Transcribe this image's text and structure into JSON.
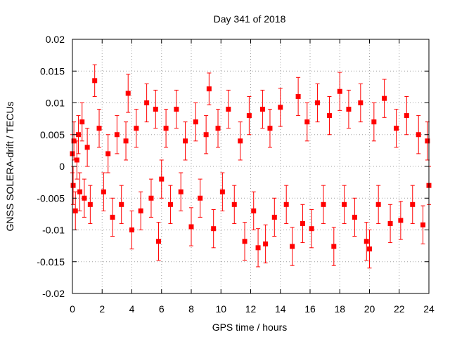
{
  "chart_data": {
    "type": "scatter",
    "title": "Day 341 of 2018",
    "xlabel": "GPS time / hours",
    "ylabel": "GNSS SOLERA-drift / TECUs",
    "xlim": [
      0,
      24
    ],
    "ylim": [
      -0.02,
      0.02
    ],
    "xticks": [
      0,
      2,
      4,
      6,
      8,
      10,
      12,
      14,
      16,
      18,
      20,
      22,
      24
    ],
    "xtick_labels": [
      "0",
      "2",
      "4",
      "6",
      "8",
      "10",
      "12",
      "14",
      "16",
      "18",
      "20",
      "22",
      "24"
    ],
    "yticks": [
      -0.02,
      -0.015,
      -0.01,
      -0.005,
      0,
      0.005,
      0.01,
      0.015,
      0.02
    ],
    "ytick_labels": [
      "-0.02",
      "-0.015",
      "-0.01",
      "-0.005",
      "0",
      "0.005",
      "0.01",
      "0.015",
      "0.02"
    ],
    "grid": true,
    "series_color": "#ff0000",
    "error_bars": true,
    "series": [
      {
        "x": [
          0.0,
          0.05,
          0.1,
          0.2,
          0.3,
          0.4,
          0.5,
          0.65,
          0.8,
          1.0,
          1.2,
          1.5,
          1.8,
          2.1,
          2.4,
          2.7,
          3.0,
          3.3,
          3.6,
          3.75,
          4.0,
          4.3,
          4.6,
          5.0,
          5.3,
          5.6,
          5.8,
          6.0,
          6.3,
          6.6,
          7.0,
          7.3,
          7.6,
          8.0,
          8.3,
          8.6,
          9.0,
          9.2,
          9.5,
          9.8,
          10.1,
          10.5,
          10.9,
          11.3,
          11.6,
          11.9,
          12.2,
          12.5,
          12.8,
          13.0,
          13.3,
          13.6,
          14.0,
          14.4,
          14.8,
          15.2,
          15.5,
          15.8,
          16.1,
          16.5,
          16.9,
          17.3,
          17.6,
          18.0,
          18.3,
          18.6,
          19.0,
          19.4,
          19.8,
          20.0,
          20.3,
          20.6,
          21.0,
          21.4,
          21.8,
          22.1,
          22.5,
          22.9,
          23.3,
          23.6,
          23.9,
          24.0
        ],
        "y": [
          0.002,
          -0.003,
          0.004,
          -0.007,
          0.001,
          0.005,
          -0.004,
          0.007,
          -0.005,
          0.003,
          -0.006,
          0.0135,
          0.006,
          -0.004,
          0.002,
          -0.008,
          0.005,
          -0.006,
          0.004,
          0.0115,
          -0.01,
          0.006,
          -0.007,
          0.01,
          -0.005,
          0.009,
          -0.0118,
          -0.002,
          0.006,
          -0.006,
          0.009,
          -0.004,
          0.004,
          -0.0095,
          0.007,
          -0.005,
          0.005,
          0.0122,
          -0.0098,
          0.006,
          -0.004,
          0.009,
          -0.006,
          0.004,
          -0.0118,
          0.008,
          -0.007,
          -0.0128,
          0.009,
          -0.0122,
          0.006,
          -0.008,
          0.0093,
          -0.006,
          -0.0126,
          0.011,
          -0.009,
          0.007,
          -0.0098,
          0.01,
          -0.006,
          0.008,
          -0.0126,
          0.0118,
          -0.006,
          0.009,
          -0.008,
          0.01,
          -0.0118,
          -0.013,
          0.007,
          -0.006,
          0.0107,
          -0.009,
          0.006,
          -0.0085,
          0.008,
          -0.006,
          0.005,
          -0.0092,
          0.004,
          -0.003
        ],
        "error": [
          0.003,
          0.003,
          0.003,
          0.003,
          0.003,
          0.003,
          0.003,
          0.003,
          0.003,
          0.003,
          0.003,
          0.0025,
          0.003,
          0.003,
          0.003,
          0.003,
          0.003,
          0.003,
          0.003,
          0.003,
          0.003,
          0.003,
          0.003,
          0.003,
          0.003,
          0.003,
          0.003,
          0.003,
          0.003,
          0.003,
          0.003,
          0.003,
          0.003,
          0.003,
          0.003,
          0.003,
          0.003,
          0.0025,
          0.003,
          0.003,
          0.003,
          0.003,
          0.003,
          0.003,
          0.003,
          0.003,
          0.003,
          0.003,
          0.003,
          0.003,
          0.003,
          0.003,
          0.003,
          0.003,
          0.003,
          0.003,
          0.003,
          0.003,
          0.003,
          0.003,
          0.003,
          0.003,
          0.003,
          0.003,
          0.003,
          0.003,
          0.003,
          0.003,
          0.003,
          0.003,
          0.003,
          0.003,
          0.003,
          0.003,
          0.003,
          0.003,
          0.003,
          0.003,
          0.003,
          0.003,
          0.003,
          0.003
        ]
      }
    ]
  }
}
